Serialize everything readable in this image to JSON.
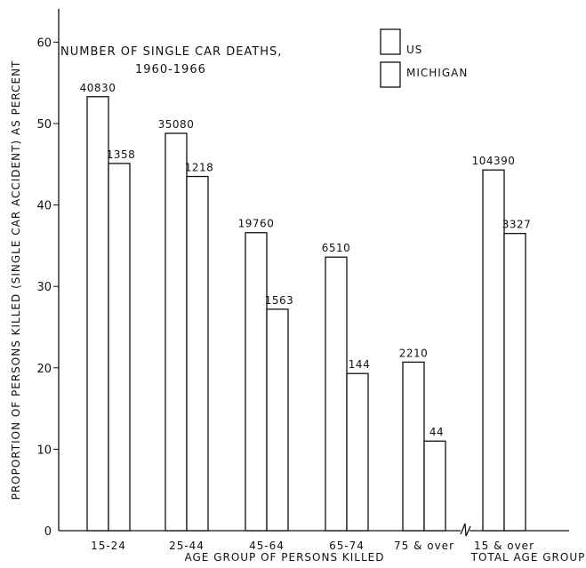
{
  "chart_data": {
    "type": "bar",
    "title": "NUMBER OF SINGLE CAR DEATHS,",
    "subtitle": "1960-1966",
    "xlabel": "AGE GROUP OF PERSONS KILLED",
    "ylabel": "PROPORTION OF PERSONS KILLED (SINGLE CAR ACCIDENT) AS PERCENT",
    "ylim": [
      0,
      65
    ],
    "yticks": [
      "0",
      "10",
      "20",
      "30",
      "40",
      "50",
      "60"
    ],
    "categories": [
      "15-24",
      "25-44",
      "45-64",
      "65-74",
      "75 & over",
      "15 & over"
    ],
    "extra_xlabel": "TOTAL AGE GROUP",
    "legend_position": "top-right",
    "grid": false,
    "series": [
      {
        "name": "US",
        "values": [
          53.3,
          48.8,
          36.6,
          33.6,
          20.7,
          44.3
        ],
        "labels": [
          "40830",
          "35080",
          "19760",
          "6510",
          "2210",
          "104390"
        ]
      },
      {
        "name": "MICHIGAN",
        "values": [
          45.1,
          43.5,
          27.2,
          19.3,
          11.0,
          36.5
        ],
        "labels": [
          "1358",
          "1218",
          "1563",
          "144",
          "44",
          "3327"
        ]
      }
    ]
  }
}
